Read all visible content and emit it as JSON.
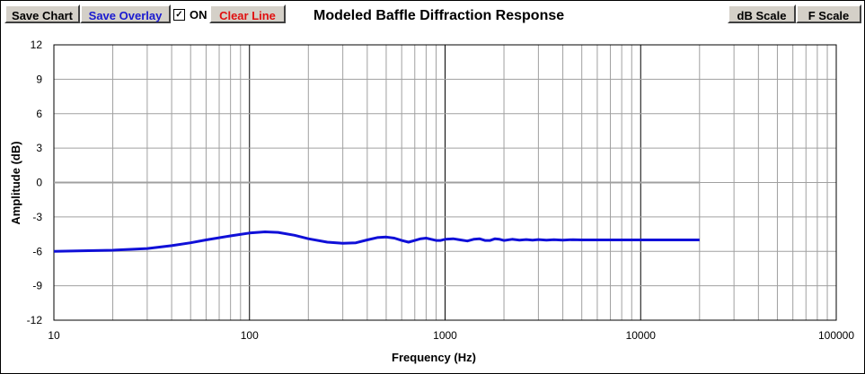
{
  "toolbar": {
    "save_chart": "Save Chart",
    "save_overlay": "Save Overlay",
    "overlay_toggle_label": "ON",
    "overlay_checked": true,
    "clear_line": "Clear Line",
    "db_scale": "dB Scale",
    "f_scale": "F Scale"
  },
  "colors": {
    "save_overlay_text": "#1a1ad0",
    "clear_line_text": "#e01010",
    "series_line": "#1010d8",
    "zero_line": "#a0a0a0",
    "grid": "#a0a0a0"
  },
  "chart_data": {
    "type": "line",
    "title": "Modeled Baffle Diffraction Response",
    "xlabel": "Frequency (Hz)",
    "ylabel": "Amplitude (dB)",
    "xscale": "log",
    "xlim": [
      10,
      100000
    ],
    "ylim": [
      -12,
      12
    ],
    "x_ticks": [
      "10",
      "100",
      "1000",
      "10000",
      "100000"
    ],
    "y_ticks": [
      "12",
      "9",
      "6",
      "3",
      "0",
      "-3",
      "-6",
      "-9",
      "-12"
    ],
    "grid": true,
    "series": [
      {
        "x": [
          10,
          14,
          20,
          30,
          40,
          50,
          60,
          80,
          100,
          120,
          140,
          170,
          200,
          250,
          300,
          350,
          400,
          450,
          500,
          550,
          600,
          650,
          700,
          750,
          800,
          850,
          900,
          950,
          1000,
          1100,
          1200,
          1300,
          1400,
          1500,
          1600,
          1700,
          1800,
          1900,
          2000,
          2200,
          2400,
          2600,
          2800,
          3000,
          3300,
          3600,
          4000,
          4500,
          5000,
          6000,
          7000,
          8000,
          10000,
          12000,
          15000,
          20000
        ],
        "y": [
          -6.0,
          -5.95,
          -5.9,
          -5.75,
          -5.5,
          -5.25,
          -5.0,
          -4.65,
          -4.4,
          -4.3,
          -4.35,
          -4.6,
          -4.9,
          -5.2,
          -5.3,
          -5.25,
          -5.0,
          -4.8,
          -4.75,
          -4.85,
          -5.05,
          -5.2,
          -5.05,
          -4.9,
          -4.85,
          -4.95,
          -5.05,
          -5.05,
          -4.95,
          -4.9,
          -5.0,
          -5.1,
          -4.95,
          -4.9,
          -5.05,
          -5.05,
          -4.9,
          -4.95,
          -5.05,
          -4.95,
          -5.02,
          -4.97,
          -5.02,
          -4.97,
          -5.02,
          -4.98,
          -5.02,
          -4.98,
          -5.0,
          -5.0,
          -5.0,
          -5.0,
          -5.0,
          -5.0,
          -5.0,
          -5.0
        ]
      }
    ]
  }
}
